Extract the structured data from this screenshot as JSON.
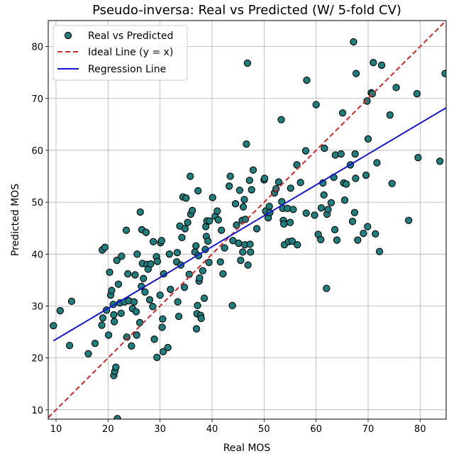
{
  "chart_data": {
    "type": "scatter",
    "title": "Pseudo-inversa: Real vs Predicted (W/ 5-fold CV)",
    "xlabel": "Real MOS",
    "ylabel": "Predicted MOS",
    "xlim": [
      8.5,
      85
    ],
    "ylim": [
      8.2,
      85
    ],
    "xticks": [
      10,
      20,
      30,
      40,
      50,
      60,
      70,
      80
    ],
    "yticks": [
      10,
      20,
      30,
      40,
      50,
      60,
      70,
      80
    ],
    "grid": true,
    "legend_position": "top-left",
    "colors": {
      "points_fill": "#1f7f7f",
      "points_edge": "#000000",
      "ideal_line": "#d62728",
      "regression_line": "#1414d8"
    },
    "series": [
      {
        "name": "Real vs Predicted",
        "kind": "scatter",
        "points": [
          [
            9.5,
            26.2
          ],
          [
            10.8,
            29.1
          ],
          [
            12.6,
            22.4
          ],
          [
            13.0,
            30.9
          ],
          [
            16.2,
            20.8
          ],
          [
            17.5,
            22.8
          ],
          [
            18.8,
            26.3
          ],
          [
            19.0,
            27.7
          ],
          [
            18.9,
            40.8
          ],
          [
            19.4,
            41.3
          ],
          [
            19.7,
            29.2
          ],
          [
            20.1,
            24.4
          ],
          [
            20.3,
            36.5
          ],
          [
            20.5,
            32.1
          ],
          [
            20.7,
            33.0
          ],
          [
            21.0,
            30.3
          ],
          [
            21.1,
            28.3
          ],
          [
            21.2,
            27.0
          ],
          [
            21.1,
            16.6
          ],
          [
            21.3,
            17.4
          ],
          [
            21.5,
            18.2
          ],
          [
            21.7,
            38.8
          ],
          [
            21.8,
            8.3
          ],
          [
            22.0,
            34.2
          ],
          [
            22.3,
            30.6
          ],
          [
            22.5,
            28.6
          ],
          [
            22.6,
            39.6
          ],
          [
            23.2,
            30.8
          ],
          [
            23.5,
            44.6
          ],
          [
            23.6,
            24.0
          ],
          [
            23.8,
            36.2
          ],
          [
            24.0,
            31.0
          ],
          [
            24.5,
            22.3
          ],
          [
            24.7,
            29.5
          ],
          [
            25.0,
            30.8
          ],
          [
            25.2,
            36.0
          ],
          [
            25.4,
            28.9
          ],
          [
            25.5,
            24.4
          ],
          [
            25.6,
            40.0
          ],
          [
            26.1,
            26.8
          ],
          [
            26.2,
            48.1
          ],
          [
            26.4,
            33.8
          ],
          [
            26.5,
            44.7
          ],
          [
            26.6,
            38.2
          ],
          [
            26.8,
            35.3
          ],
          [
            27.1,
            32.7
          ],
          [
            27.3,
            44.2
          ],
          [
            27.5,
            38.0
          ],
          [
            27.7,
            37.1
          ],
          [
            28.0,
            31.2
          ],
          [
            28.2,
            38.1
          ],
          [
            28.6,
            29.9
          ],
          [
            28.7,
            42.4
          ],
          [
            28.9,
            23.6
          ],
          [
            29.3,
            39.5
          ],
          [
            29.4,
            20.1
          ],
          [
            29.5,
            38.6
          ],
          [
            30.0,
            32.1
          ],
          [
            30.1,
            42.2
          ],
          [
            30.3,
            42.6
          ],
          [
            30.4,
            25.9
          ],
          [
            30.5,
            27.5
          ],
          [
            30.6,
            21.2
          ],
          [
            30.7,
            36.2
          ],
          [
            31.5,
            22.0
          ],
          [
            31.8,
            40.0
          ],
          [
            32.0,
            33.2
          ],
          [
            33.2,
            38.5
          ],
          [
            33.3,
            40.3
          ],
          [
            33.4,
            30.8
          ],
          [
            33.6,
            28.0
          ],
          [
            33.8,
            45.4
          ],
          [
            34.0,
            37.9
          ],
          [
            34.2,
            43.2
          ],
          [
            34.4,
            51.0
          ],
          [
            34.7,
            33.6
          ],
          [
            34.8,
            44.9
          ],
          [
            35.0,
            50.8
          ],
          [
            35.3,
            46.1
          ],
          [
            35.6,
            36.1
          ],
          [
            35.8,
            55.0
          ],
          [
            35.9,
            47.7
          ],
          [
            36.2,
            48.4
          ],
          [
            36.7,
            40.4
          ],
          [
            36.9,
            41.6
          ],
          [
            37.0,
            25.6
          ],
          [
            37.1,
            28.5
          ],
          [
            37.2,
            30.1
          ],
          [
            37.3,
            52.2
          ],
          [
            37.4,
            39.7
          ],
          [
            37.5,
            34.8
          ],
          [
            37.6,
            35.4
          ],
          [
            37.8,
            28.2
          ],
          [
            37.9,
            27.6
          ],
          [
            38.2,
            36.8
          ],
          [
            38.5,
            31.5
          ],
          [
            38.7,
            40.9
          ],
          [
            38.8,
            45.3
          ],
          [
            38.9,
            43.4
          ],
          [
            39.0,
            46.4
          ],
          [
            39.2,
            42.5
          ],
          [
            39.4,
            38.4
          ],
          [
            39.5,
            46.4
          ],
          [
            40.1,
            50.9
          ],
          [
            40.6,
            47.3
          ],
          [
            41.0,
            48.3
          ],
          [
            41.2,
            46.6
          ],
          [
            41.6,
            38.5
          ],
          [
            41.8,
            44.6
          ],
          [
            42.1,
            36.2
          ],
          [
            42.4,
            41.2
          ],
          [
            43.3,
            53.1
          ],
          [
            43.5,
            55.0
          ],
          [
            43.9,
            30.1
          ],
          [
            44.0,
            42.6
          ],
          [
            44.5,
            49.7
          ],
          [
            44.7,
            45.6
          ],
          [
            45.1,
            42.1
          ],
          [
            45.3,
            52.3
          ],
          [
            45.5,
            38.8
          ],
          [
            45.8,
            46.5
          ],
          [
            45.9,
            40.4
          ],
          [
            46.0,
            49.1
          ],
          [
            46.2,
            50.5
          ],
          [
            46.3,
            41.8
          ],
          [
            46.4,
            46.7
          ],
          [
            46.6,
            61.2
          ],
          [
            46.8,
            76.8
          ],
          [
            46.9,
            37.9
          ],
          [
            47.2,
            54.2
          ],
          [
            47.3,
            41.9
          ],
          [
            47.4,
            40.4
          ],
          [
            47.6,
            52.4
          ],
          [
            47.9,
            56.2
          ],
          [
            48.6,
            44.9
          ],
          [
            50.0,
            54.3
          ],
          [
            50.1,
            54.6
          ],
          [
            50.3,
            48.3
          ],
          [
            50.8,
            47.0
          ],
          [
            51.0,
            49.2
          ],
          [
            51.1,
            48.0
          ],
          [
            52.0,
            51.8
          ],
          [
            52.3,
            52.6
          ],
          [
            52.8,
            53.9
          ],
          [
            53.3,
            65.9
          ],
          [
            53.4,
            50.1
          ],
          [
            53.6,
            48.8
          ],
          [
            53.7,
            46.5
          ],
          [
            53.8,
            45.8
          ],
          [
            53.9,
            41.8
          ],
          [
            54.5,
            48.8
          ],
          [
            54.7,
            42.4
          ],
          [
            55.0,
            46.1
          ],
          [
            55.1,
            52.7
          ],
          [
            55.4,
            42.5
          ],
          [
            55.6,
            48.6
          ],
          [
            56.3,
            57.2
          ],
          [
            56.4,
            41.8
          ],
          [
            57.0,
            53.8
          ],
          [
            58.0,
            59.9
          ],
          [
            58.1,
            47.9
          ],
          [
            58.2,
            73.5
          ],
          [
            59.7,
            47.5
          ],
          [
            60.0,
            68.8
          ],
          [
            60.4,
            43.8
          ],
          [
            60.9,
            42.8
          ],
          [
            61.0,
            48.9
          ],
          [
            61.3,
            53.7
          ],
          [
            61.5,
            51.4
          ],
          [
            61.6,
            60.4
          ],
          [
            62.0,
            33.4
          ],
          [
            62.1,
            47.7
          ],
          [
            62.3,
            48.6
          ],
          [
            62.9,
            49.9
          ],
          [
            63.4,
            54.8
          ],
          [
            63.6,
            44.7
          ],
          [
            63.7,
            59.1
          ],
          [
            64.0,
            42.7
          ],
          [
            64.8,
            59.3
          ],
          [
            65.1,
            67.2
          ],
          [
            65.3,
            53.7
          ],
          [
            65.5,
            50.4
          ],
          [
            65.8,
            53.5
          ],
          [
            66.6,
            57.2
          ],
          [
            67.0,
            46.3
          ],
          [
            67.2,
            80.9
          ],
          [
            67.4,
            48.0
          ],
          [
            67.5,
            59.3
          ],
          [
            67.6,
            54.6
          ],
          [
            67.7,
            74.8
          ],
          [
            68.0,
            42.7
          ],
          [
            69.1,
            44.0
          ],
          [
            69.6,
            55.2
          ],
          [
            69.8,
            69.5
          ],
          [
            69.9,
            45.3
          ],
          [
            70.0,
            62.2
          ],
          [
            70.6,
            71.1
          ],
          [
            70.8,
            70.9
          ],
          [
            71.0,
            76.9
          ],
          [
            71.4,
            43.9
          ],
          [
            71.7,
            57.6
          ],
          [
            72.2,
            40.5
          ],
          [
            72.6,
            76.4
          ],
          [
            74.2,
            66.8
          ],
          [
            74.6,
            53.6
          ],
          [
            75.4,
            72.1
          ],
          [
            77.8,
            46.5
          ],
          [
            79.4,
            70.9
          ],
          [
            79.6,
            58.6
          ],
          [
            83.8,
            57.9
          ],
          [
            84.8,
            74.8
          ]
        ]
      },
      {
        "name": "Ideal Line (y = x)",
        "kind": "line",
        "style": "dashed",
        "x": [
          8.5,
          85
        ],
        "y": [
          8.5,
          85
        ]
      },
      {
        "name": "Regression Line",
        "kind": "line",
        "style": "solid",
        "x": [
          9.5,
          85
        ],
        "y": [
          23.3,
          68.2
        ]
      }
    ]
  }
}
